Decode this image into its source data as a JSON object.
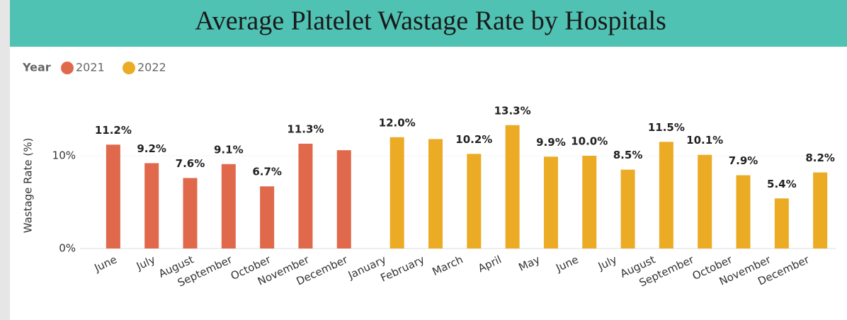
{
  "chart_data": {
    "type": "bar",
    "title": "Average Platelet Wastage Rate by Hospitals",
    "legend_title": "Year",
    "y_label": "Wastage Rate (%)",
    "categories": [
      "June",
      "July",
      "August",
      "September",
      "October",
      "November",
      "December",
      "January",
      "February",
      "March",
      "April",
      "May",
      "June",
      "July",
      "August",
      "September",
      "October",
      "November",
      "December"
    ],
    "series": [
      {
        "name": "2021",
        "color": "#e0694b",
        "values": [
          11.2,
          9.2,
          7.6,
          9.1,
          6.7,
          11.3,
          10.6,
          null,
          null,
          null,
          null,
          null,
          null,
          null,
          null,
          null,
          null,
          null,
          null
        ],
        "value_labels": [
          "11.2%",
          "9.2%",
          "7.6%",
          "9.1%",
          "6.7%",
          "11.3%",
          null,
          null,
          null,
          null,
          null,
          null,
          null,
          null,
          null,
          null,
          null,
          null,
          null
        ]
      },
      {
        "name": "2022",
        "color": "#ebab24",
        "values": [
          null,
          null,
          null,
          null,
          null,
          null,
          null,
          12.0,
          11.8,
          10.2,
          13.3,
          9.9,
          10.0,
          8.5,
          11.5,
          10.1,
          7.9,
          5.4,
          8.2
        ],
        "value_labels": [
          null,
          null,
          null,
          null,
          null,
          null,
          null,
          "12.0%",
          null,
          "10.2%",
          "13.3%",
          "9.9%",
          "10.0%",
          "8.5%",
          "11.5%",
          "10.1%",
          "7.9%",
          "5.4%",
          "8.2%"
        ]
      }
    ],
    "ylim": [
      0,
      15
    ],
    "yticks": [
      {
        "value": 0,
        "label": "0%"
      },
      {
        "value": 10,
        "label": "10%"
      }
    ],
    "grid": true
  }
}
